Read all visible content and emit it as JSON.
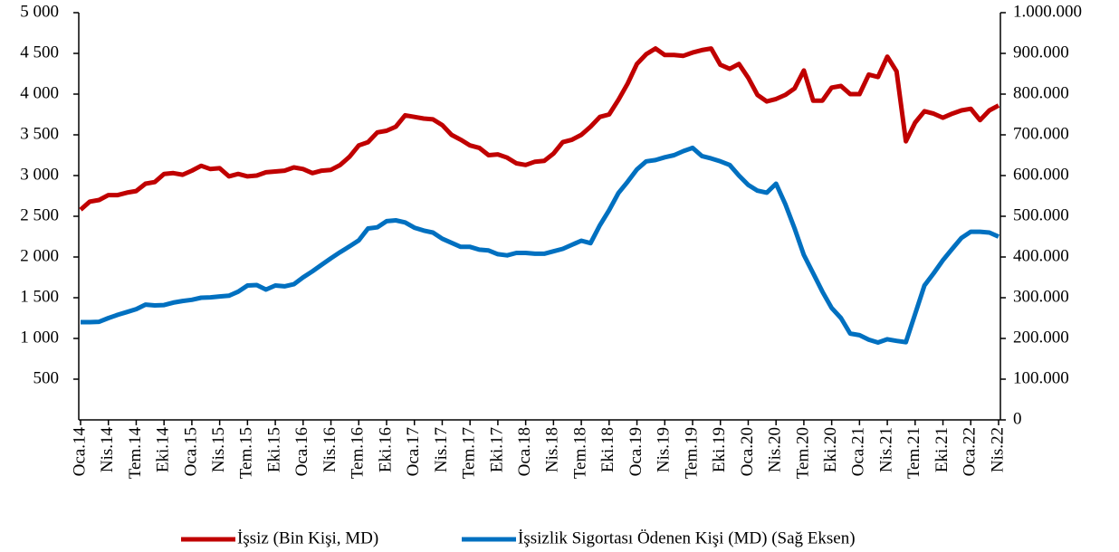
{
  "chart_data": {
    "type": "line",
    "categories": [
      "Oca.14",
      null,
      null,
      "Nis.14",
      null,
      null,
      "Tem.14",
      null,
      null,
      "Eki.14",
      null,
      null,
      "Oca.15",
      null,
      null,
      "Nis.15",
      null,
      null,
      "Tem.15",
      null,
      null,
      "Eki.15",
      null,
      null,
      "Oca.16",
      null,
      null,
      "Nis.16",
      null,
      null,
      "Tem.16",
      null,
      null,
      "Eki.16",
      null,
      null,
      "Oca.17",
      null,
      null,
      "Nis.17",
      null,
      null,
      "Tem.17",
      null,
      null,
      "Eki.17",
      null,
      null,
      "Oca.18",
      null,
      null,
      "Nis.18",
      null,
      null,
      "Tem.18",
      null,
      null,
      "Eki.18",
      null,
      null,
      "Oca.19",
      null,
      null,
      "Nis.19",
      null,
      null,
      "Tem.19",
      null,
      null,
      "Eki.19",
      null,
      null,
      "Oca.20",
      null,
      null,
      "Nis.20",
      null,
      null,
      "Tem.20",
      null,
      null,
      "Eki.20",
      null,
      null,
      "Oca.21",
      null,
      null,
      "Nis.21",
      null,
      null,
      "Tem.21",
      null,
      null,
      "Eki.21",
      null,
      null,
      "Oca.22",
      null,
      null,
      "Nis.22"
    ],
    "series": [
      {
        "name": "İşsiz (Bin Kişi, MD)",
        "color": "#c00000",
        "axis": "y",
        "values": [
          2580,
          2680,
          2700,
          2760,
          2760,
          2790,
          2810,
          2900,
          2920,
          3020,
          3030,
          3010,
          3060,
          3120,
          3080,
          3090,
          2990,
          3020,
          2990,
          3000,
          3040,
          3050,
          3060,
          3100,
          3080,
          3030,
          3060,
          3070,
          3130,
          3230,
          3370,
          3410,
          3530,
          3550,
          3600,
          3740,
          3720,
          3700,
          3690,
          3620,
          3500,
          3440,
          3370,
          3340,
          3250,
          3260,
          3220,
          3150,
          3130,
          3170,
          3180,
          3270,
          3410,
          3440,
          3500,
          3600,
          3720,
          3750,
          3930,
          4130,
          4370,
          4490,
          4560,
          4480,
          4480,
          4470,
          4510,
          4540,
          4560,
          4360,
          4310,
          4370,
          4200,
          3990,
          3910,
          3940,
          3990,
          4070,
          4290,
          3920,
          3920,
          4080,
          4100,
          4000,
          4000,
          4240,
          4210,
          4460,
          4280,
          3420,
          3650,
          3790,
          3760,
          3710,
          3760,
          3800,
          3820,
          3680,
          3800,
          3860
        ]
      },
      {
        "name": "İşsizlik Sigortası Ödenen Kişi (MD) (Sağ Eksen)",
        "color": "#0070c0",
        "axis": "y2",
        "values": [
          240000,
          240000,
          241000,
          250000,
          258000,
          265000,
          272000,
          283000,
          281000,
          282000,
          288000,
          292000,
          295000,
          300000,
          301000,
          303000,
          305000,
          315000,
          330000,
          331000,
          320000,
          330000,
          328000,
          333000,
          350000,
          365000,
          381000,
          397000,
          412000,
          426000,
          441000,
          470000,
          473000,
          488000,
          490000,
          485000,
          472000,
          465000,
          460000,
          445000,
          435000,
          425000,
          425000,
          418000,
          416000,
          407000,
          404000,
          410000,
          410000,
          408000,
          408000,
          414000,
          420000,
          430000,
          440000,
          434000,
          478000,
          515000,
          557000,
          585000,
          615000,
          635000,
          638000,
          645000,
          650000,
          660000,
          668000,
          648000,
          642000,
          635000,
          626000,
          600000,
          577000,
          563000,
          558000,
          580000,
          530000,
          470000,
          405000,
          360000,
          315000,
          275000,
          250000,
          212000,
          208000,
          197000,
          190000,
          198000,
          194000,
          191000,
          260000,
          330000,
          360000,
          392000,
          420000,
          447000,
          462000,
          462000,
          460000,
          450000
        ]
      }
    ],
    "ylim": [
      0,
      5000
    ],
    "yticks": [
      500,
      {
        "value": 1000,
        "label": "1 000"
      },
      {
        "value": 1500,
        "label": "1 500"
      },
      {
        "value": 2000,
        "label": "2 000"
      },
      {
        "value": 2500,
        "label": "2 500"
      },
      {
        "value": 3000,
        "label": "3 000"
      },
      {
        "value": 3500,
        "label": "3 500"
      },
      {
        "value": 4000,
        "label": "4 000"
      },
      {
        "value": 4500,
        "label": "4 500"
      },
      {
        "value": 5000,
        "label": "5 000"
      }
    ],
    "y2lim": [
      0,
      1000000
    ],
    "y2ticks": [
      0,
      {
        "value": 100000,
        "label": "100.000"
      },
      {
        "value": 200000,
        "label": "200.000"
      },
      {
        "value": 300000,
        "label": "300.000"
      },
      {
        "value": 400000,
        "label": "400.000"
      },
      {
        "value": 500000,
        "label": "500.000"
      },
      {
        "value": 600000,
        "label": "600.000"
      },
      {
        "value": 700000,
        "label": "700.000"
      },
      {
        "value": 800000,
        "label": "800.000"
      },
      {
        "value": 900000,
        "label": "900.000"
      },
      {
        "value": 1000000,
        "label": "1.000.000"
      }
    ],
    "legend": "bottom",
    "grid": false
  }
}
